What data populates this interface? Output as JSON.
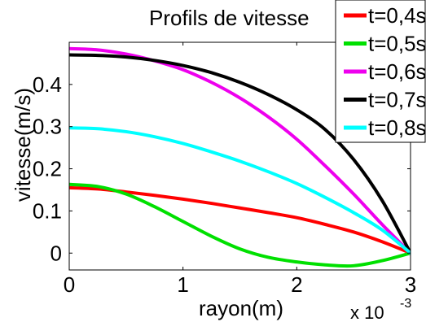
{
  "chart_data": {
    "type": "line",
    "title": "Profils de vitesse",
    "xlabel": "rayon(m)",
    "ylabel": "vitesse(m/s)",
    "x_multiplier": "x 10",
    "x_multiplier_exp": "-3",
    "xlim": [
      0,
      0.003
    ],
    "ylim": [
      -0.04,
      0.5
    ],
    "x_ticks": [
      0,
      0.001,
      0.002,
      0.003
    ],
    "x_tick_labels": [
      "0",
      "1",
      "2",
      "3"
    ],
    "y_ticks": [
      0,
      0.1,
      0.2,
      0.3,
      0.4
    ],
    "y_tick_labels": [
      "0",
      "0.1",
      "0.2",
      "0.3",
      "0.4"
    ],
    "grid": false,
    "legend_position": "top-right",
    "series": [
      {
        "name": "t=0,4s",
        "color": "#ff0000",
        "x": [
          0,
          0.00025,
          0.0005,
          0.00075,
          0.001,
          0.00125,
          0.0015,
          0.00175,
          0.002,
          0.00225,
          0.0025,
          0.00275,
          0.003
        ],
        "y": [
          0.155,
          0.152,
          0.145,
          0.137,
          0.128,
          0.118,
          0.107,
          0.096,
          0.084,
          0.068,
          0.05,
          0.027,
          0.0
        ]
      },
      {
        "name": "t=0,5s",
        "color": "#00e000",
        "x": [
          0,
          0.00025,
          0.0005,
          0.00075,
          0.001,
          0.00125,
          0.0015,
          0.00175,
          0.002,
          0.00225,
          0.0025,
          0.00275,
          0.003
        ],
        "y": [
          0.163,
          0.158,
          0.14,
          0.11,
          0.075,
          0.04,
          0.01,
          -0.01,
          -0.021,
          -0.028,
          -0.03,
          -0.018,
          0.0
        ]
      },
      {
        "name": "t=0,6s",
        "color": "#ee00ee",
        "x": [
          0,
          0.00025,
          0.0005,
          0.00075,
          0.001,
          0.00125,
          0.0015,
          0.00175,
          0.002,
          0.00225,
          0.0025,
          0.00275,
          0.003
        ],
        "y": [
          0.485,
          0.482,
          0.472,
          0.456,
          0.435,
          0.405,
          0.368,
          0.323,
          0.27,
          0.207,
          0.14,
          0.068,
          0.0
        ]
      },
      {
        "name": "t=0,7s",
        "color": "#000000",
        "x": [
          0,
          0.00025,
          0.0005,
          0.00075,
          0.001,
          0.00125,
          0.0015,
          0.00175,
          0.002,
          0.00225,
          0.0025,
          0.00275,
          0.003
        ],
        "y": [
          0.47,
          0.469,
          0.465,
          0.457,
          0.445,
          0.428,
          0.405,
          0.376,
          0.34,
          0.293,
          0.222,
          0.125,
          0.0
        ]
      },
      {
        "name": "t=0,8s",
        "color": "#00ffff",
        "x": [
          0,
          0.00025,
          0.0005,
          0.00075,
          0.001,
          0.00125,
          0.0015,
          0.00175,
          0.002,
          0.00225,
          0.0025,
          0.00275,
          0.003
        ],
        "y": [
          0.297,
          0.295,
          0.288,
          0.276,
          0.26,
          0.24,
          0.218,
          0.193,
          0.165,
          0.132,
          0.096,
          0.055,
          0.0
        ]
      }
    ]
  }
}
